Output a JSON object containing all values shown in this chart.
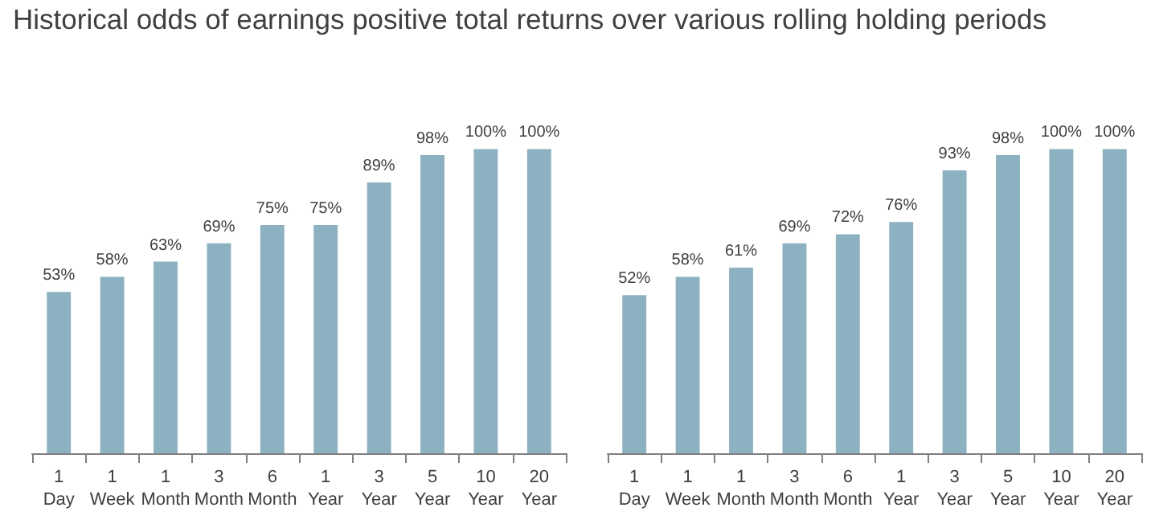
{
  "chart_data": [
    {
      "type": "bar",
      "title": "Historical odds of earnings positive total returns over various rolling holding periods",
      "categories": [
        "1 Day",
        "1 Week",
        "1 Month",
        "3 Month",
        "6 Month",
        "1 Year",
        "3 Year",
        "5 Year",
        "10 Year",
        "20 Year"
      ],
      "values": [
        53,
        58,
        63,
        69,
        75,
        75,
        89,
        98,
        100,
        100
      ],
      "value_labels": [
        "53%",
        "58%",
        "63%",
        "69%",
        "75%",
        "75%",
        "89%",
        "98%",
        "100%",
        "100%"
      ],
      "color": "#8cb1c1",
      "tick_labels": "x"
    },
    {
      "type": "bar",
      "categories": [
        "1 Day",
        "1 Week",
        "1 Month",
        "3 Month",
        "6 Month",
        "1 Year",
        "3 Year",
        "5 Year",
        "10 Year",
        "20 Year"
      ],
      "values": [
        52,
        58,
        61,
        69,
        72,
        76,
        93,
        98,
        100,
        100
      ],
      "value_labels": [
        "52%",
        "58%",
        "61%",
        "69%",
        "72%",
        "76%",
        "93%",
        "98%",
        "100%",
        "100%"
      ],
      "color": "#8cb1c1",
      "tick_labels": "x"
    }
  ]
}
